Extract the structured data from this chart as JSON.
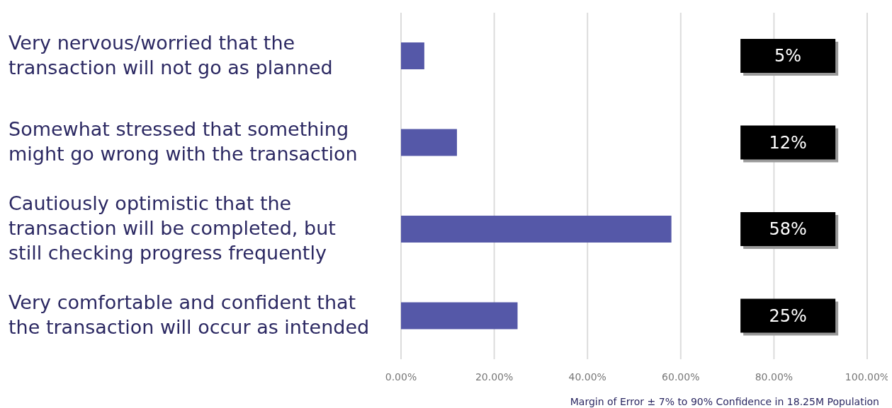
{
  "chart_data": {
    "type": "bar",
    "orientation": "horizontal",
    "categories": [
      "Very nervous/worried that the\ntransaction will not go as planned",
      "Somewhat stressed that something\nmight go wrong with the transaction",
      "Cautiously optimistic that the\ntransaction will be completed, but\nstill checking progress frequently",
      "Very comfortable and confident that\nthe transaction will occur as intended"
    ],
    "values": [
      5,
      12,
      58,
      25
    ],
    "value_labels": [
      "5%",
      "12%",
      "58%",
      "25%"
    ],
    "color": "#5558a8",
    "xlim": [
      0,
      100
    ],
    "xticks": [
      {
        "value": 0,
        "label": "0.00%"
      },
      {
        "value": 20,
        "label": "20.00%"
      },
      {
        "value": 40,
        "label": "40.00%"
      },
      {
        "value": 60,
        "label": "60.00%"
      },
      {
        "value": 80,
        "label": "80.00%"
      },
      {
        "value": 100,
        "label": "100.00%"
      }
    ],
    "grid": "x",
    "annotations": [
      "Margin of Error ± 7% to 90% Confidence in 18.25M Population"
    ]
  }
}
